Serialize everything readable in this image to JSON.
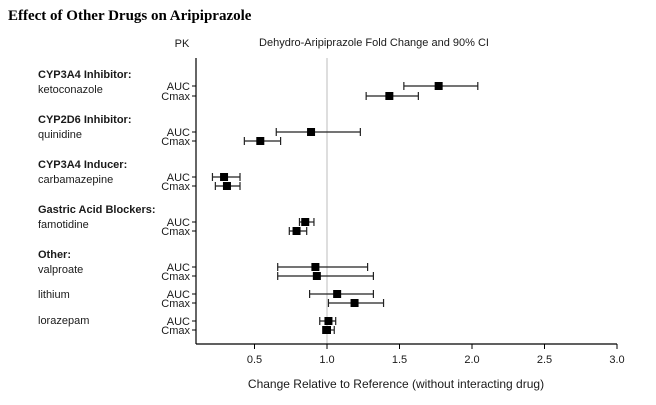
{
  "chart_data": {
    "type": "forest",
    "title": "Effect of Other Drugs on Aripiprazole",
    "column_header_pk": "PK",
    "subtitle": "Dehydro-Aripiprazole Fold Change and 90% CI",
    "xlabel": "Change Relative to Reference (without interacting drug)",
    "xlim": [
      0.1,
      3.0
    ],
    "xticks": [
      0.5,
      1.0,
      1.5,
      2.0,
      2.5,
      3.0
    ],
    "xtick_labels": [
      "0.5",
      "1.0",
      "1.5",
      "2.0",
      "2.5",
      "3.0"
    ],
    "reference_line": 1.0,
    "groups": [
      {
        "category": "CYP3A4 Inhibitor:",
        "drugs": [
          {
            "name": "ketoconazole",
            "pk": [
              {
                "param": "AUC",
                "estimate": 1.77,
                "ci_low": 1.53,
                "ci_high": 2.04
              },
              {
                "param": "Cmax",
                "estimate": 1.43,
                "ci_low": 1.27,
                "ci_high": 1.63
              }
            ]
          }
        ]
      },
      {
        "category": "CYP2D6 Inhibitor:",
        "drugs": [
          {
            "name": "quinidine",
            "pk": [
              {
                "param": "AUC",
                "estimate": 0.89,
                "ci_low": 0.65,
                "ci_high": 1.23
              },
              {
                "param": "Cmax",
                "estimate": 0.54,
                "ci_low": 0.43,
                "ci_high": 0.68
              }
            ]
          }
        ]
      },
      {
        "category": "CYP3A4 Inducer:",
        "drugs": [
          {
            "name": "carbamazepine",
            "pk": [
              {
                "param": "AUC",
                "estimate": 0.29,
                "ci_low": 0.21,
                "ci_high": 0.4
              },
              {
                "param": "Cmax",
                "estimate": 0.31,
                "ci_low": 0.23,
                "ci_high": 0.4
              }
            ]
          }
        ]
      },
      {
        "category": "Gastric Acid Blockers:",
        "drugs": [
          {
            "name": "famotidine",
            "pk": [
              {
                "param": "AUC",
                "estimate": 0.85,
                "ci_low": 0.81,
                "ci_high": 0.91
              },
              {
                "param": "Cmax",
                "estimate": 0.79,
                "ci_low": 0.74,
                "ci_high": 0.86
              }
            ]
          }
        ]
      },
      {
        "category": "Other:",
        "drugs": [
          {
            "name": "valproate",
            "pk": [
              {
                "param": "AUC",
                "estimate": 0.92,
                "ci_low": 0.66,
                "ci_high": 1.28
              },
              {
                "param": "Cmax",
                "estimate": 0.93,
                "ci_low": 0.66,
                "ci_high": 1.32
              }
            ]
          },
          {
            "name": "lithium",
            "pk": [
              {
                "param": "AUC",
                "estimate": 1.07,
                "ci_low": 0.88,
                "ci_high": 1.32
              },
              {
                "param": "Cmax",
                "estimate": 1.19,
                "ci_low": 1.01,
                "ci_high": 1.39
              }
            ]
          },
          {
            "name": "lorazepam",
            "pk": [
              {
                "param": "AUC",
                "estimate": 1.01,
                "ci_low": 0.95,
                "ci_high": 1.06
              },
              {
                "param": "Cmax",
                "estimate": 1.0,
                "ci_low": 0.97,
                "ci_high": 1.05
              }
            ]
          }
        ]
      }
    ]
  }
}
